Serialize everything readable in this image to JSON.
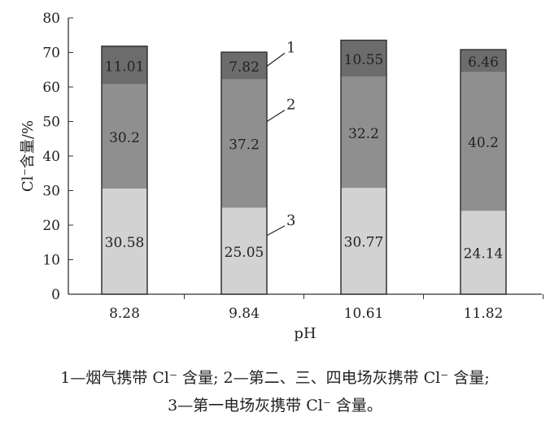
{
  "chart_data": {
    "type": "bar",
    "stacked": true,
    "categories": [
      "8.28",
      "9.84",
      "10.61",
      "11.82"
    ],
    "series": [
      {
        "name": "3",
        "values": [
          30.58,
          25.05,
          30.77,
          24.14
        ],
        "color": "#d2d2d2"
      },
      {
        "name": "2",
        "values": [
          30.2,
          37.2,
          32.2,
          40.2
        ],
        "color": "#8f8f8f"
      },
      {
        "name": "1",
        "values": [
          11.01,
          7.82,
          10.55,
          6.46
        ],
        "color": "#6c6c6c"
      }
    ],
    "data_labels": [
      [
        "30.58",
        "25.05",
        "30.77",
        "24.14"
      ],
      [
        "30.2",
        "37.2",
        "32.2",
        "40.2"
      ],
      [
        "11.01",
        "7.82",
        "10.55",
        "6.46"
      ]
    ],
    "xlabel": "pH",
    "ylabel": "Cl⁻含量/%",
    "ylim": [
      0,
      80
    ],
    "yticks": [
      0,
      10,
      20,
      30,
      40,
      50,
      60,
      70,
      80
    ],
    "grid": false,
    "series_markers": [
      "1",
      "2",
      "3"
    ]
  },
  "caption": {
    "line1": "1—烟气携带 Cl⁻ 含量; 2—第二、三、四电场灰携带 Cl⁻ 含量;",
    "line2": "3—第一电场灰携带 Cl⁻ 含量。"
  }
}
